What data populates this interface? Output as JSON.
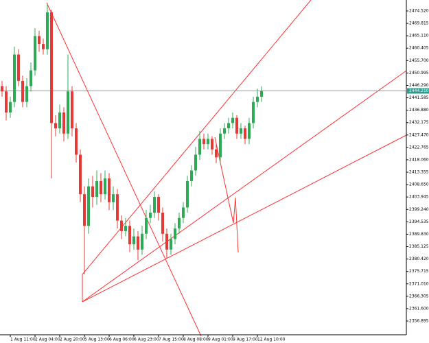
{
  "chart_data": {
    "type": "candlestick",
    "categories": [
      null,
      null,
      "1 Aug 11:00",
      null,
      null,
      null,
      null,
      null,
      "2 Aug 04:00",
      null,
      null,
      null,
      null,
      null,
      "2 Aug 20:00",
      null,
      null,
      null,
      null,
      null,
      "5 Aug 13:00",
      null,
      null,
      null,
      null,
      null,
      "6 Aug 06:00",
      null,
      null,
      null,
      null,
      null,
      "6 Aug 23:00",
      null,
      null,
      null,
      null,
      null,
      "7 Aug 15:00",
      null,
      null,
      null,
      null,
      null,
      "8 Aug 08:00",
      null,
      null,
      null,
      null,
      null,
      "9 Aug 01:00",
      null,
      null,
      null,
      null,
      null,
      "9 Aug 17:00",
      null,
      null,
      null,
      null,
      null,
      "12 Aug 10:00",
      null
    ],
    "open": [
      2446,
      2444,
      2436,
      2440,
      2458,
      2448,
      2440,
      2446,
      2452,
      2465,
      2462,
      2460,
      2474,
      2432,
      2430,
      2436,
      2428,
      2444,
      2430,
      2420,
      2405,
      2393,
      2408,
      2404,
      2410,
      2405,
      2411,
      2402,
      2405,
      2395,
      2391,
      2393,
      2386,
      2389,
      2384,
      2390,
      2396,
      2398,
      2404,
      2398,
      2390,
      2384,
      2388,
      2392,
      2396,
      2400,
      2410,
      2414,
      2420,
      2426,
      2424,
      2426,
      2422,
      2419,
      2428,
      2430,
      2432,
      2434,
      2428,
      2430,
      2426,
      2432,
      2440,
      2442
    ],
    "high": [
      2448,
      2446,
      2442,
      2461,
      2460,
      2450,
      2449,
      2455,
      2468,
      2467,
      2464,
      2477.4,
      2475,
      2435,
      2439,
      2438,
      2458,
      2446,
      2432,
      2422,
      2408,
      2411,
      2412,
      2414,
      2413,
      2414,
      2413,
      2408,
      2407,
      2397,
      2396,
      2395,
      2392,
      2391,
      2393,
      2399,
      2401,
      2406,
      2405,
      2400,
      2392,
      2390,
      2394,
      2398,
      2402,
      2412,
      2416,
      2423,
      2429,
      2428,
      2428,
      2427,
      2424,
      2430,
      2432,
      2434,
      2436,
      2435,
      2432,
      2431,
      2434,
      2442,
      2445,
      2446
    ],
    "low": [
      2442,
      2433,
      2434,
      2438,
      2446,
      2438,
      2438,
      2444,
      2450,
      2459,
      2458,
      2458,
      2411,
      2427,
      2428,
      2425,
      2426,
      2427,
      2417,
      2402,
      2374.6,
      2390,
      2400,
      2401,
      2402,
      2403,
      2399,
      2399,
      2392,
      2388,
      2389,
      2383,
      2384,
      2380,
      2382,
      2388,
      2394,
      2396,
      2395,
      2387,
      2380.8,
      2382,
      2386,
      2390,
      2394,
      2398,
      2408,
      2412,
      2418,
      2422,
      2422,
      2420,
      2416.8,
      2417,
      2426,
      2428,
      2430,
      2426,
      2426,
      2424,
      2424,
      2430,
      2438,
      2440
    ],
    "close": [
      2444,
      2436,
      2440,
      2458,
      2448,
      2440,
      2446,
      2452,
      2465,
      2462,
      2460,
      2474,
      2432,
      2430,
      2436,
      2428,
      2444,
      2430,
      2420,
      2405,
      2393,
      2408,
      2404,
      2410,
      2405,
      2411,
      2402,
      2405,
      2395,
      2391,
      2393,
      2386,
      2389,
      2384,
      2390,
      2396,
      2398,
      2404,
      2398,
      2390,
      2384,
      2388,
      2392,
      2396,
      2400,
      2410,
      2414,
      2420,
      2426,
      2424,
      2426,
      2422,
      2419,
      2428,
      2430,
      2432,
      2434,
      2428,
      2430,
      2426,
      2432,
      2440,
      2442,
      2444.2
    ],
    "up_color": "#2eaa55",
    "down_color": "#e53935",
    "current_price": {
      "value": 2444.21,
      "label": "2444.210"
    },
    "ylim": [
      2351.69,
      2478.68
    ],
    "yticks": [
      {
        "value": 2474.52,
        "label": "2474.520"
      },
      2469.815,
      {
        "value": 2465.11,
        "label": "2465.110"
      },
      2460.405,
      {
        "value": 2455.7,
        "label": "2455.700"
      },
      2450.995,
      {
        "value": 2446.29,
        "label": "2446.290"
      },
      2441.585,
      {
        "value": 2436.88,
        "label": "2436.880"
      },
      2432.175,
      {
        "value": 2427.47,
        "label": "2427.470"
      },
      2422.765,
      {
        "value": 2418.06,
        "label": "2418.060"
      },
      2413.355,
      {
        "value": 2408.65,
        "label": "2408.650"
      },
      2403.945,
      {
        "value": 2399.24,
        "label": "2399.240"
      },
      2394.535,
      {
        "value": 2389.83,
        "label": "2389.830"
      },
      2385.125,
      {
        "value": 2380.42,
        "label": "2380.420"
      },
      2375.715,
      {
        "value": 2371.01,
        "label": "2371.010"
      },
      2366.305,
      {
        "value": 2361.6,
        "label": "2361.600"
      },
      2356.895
    ]
  }
}
